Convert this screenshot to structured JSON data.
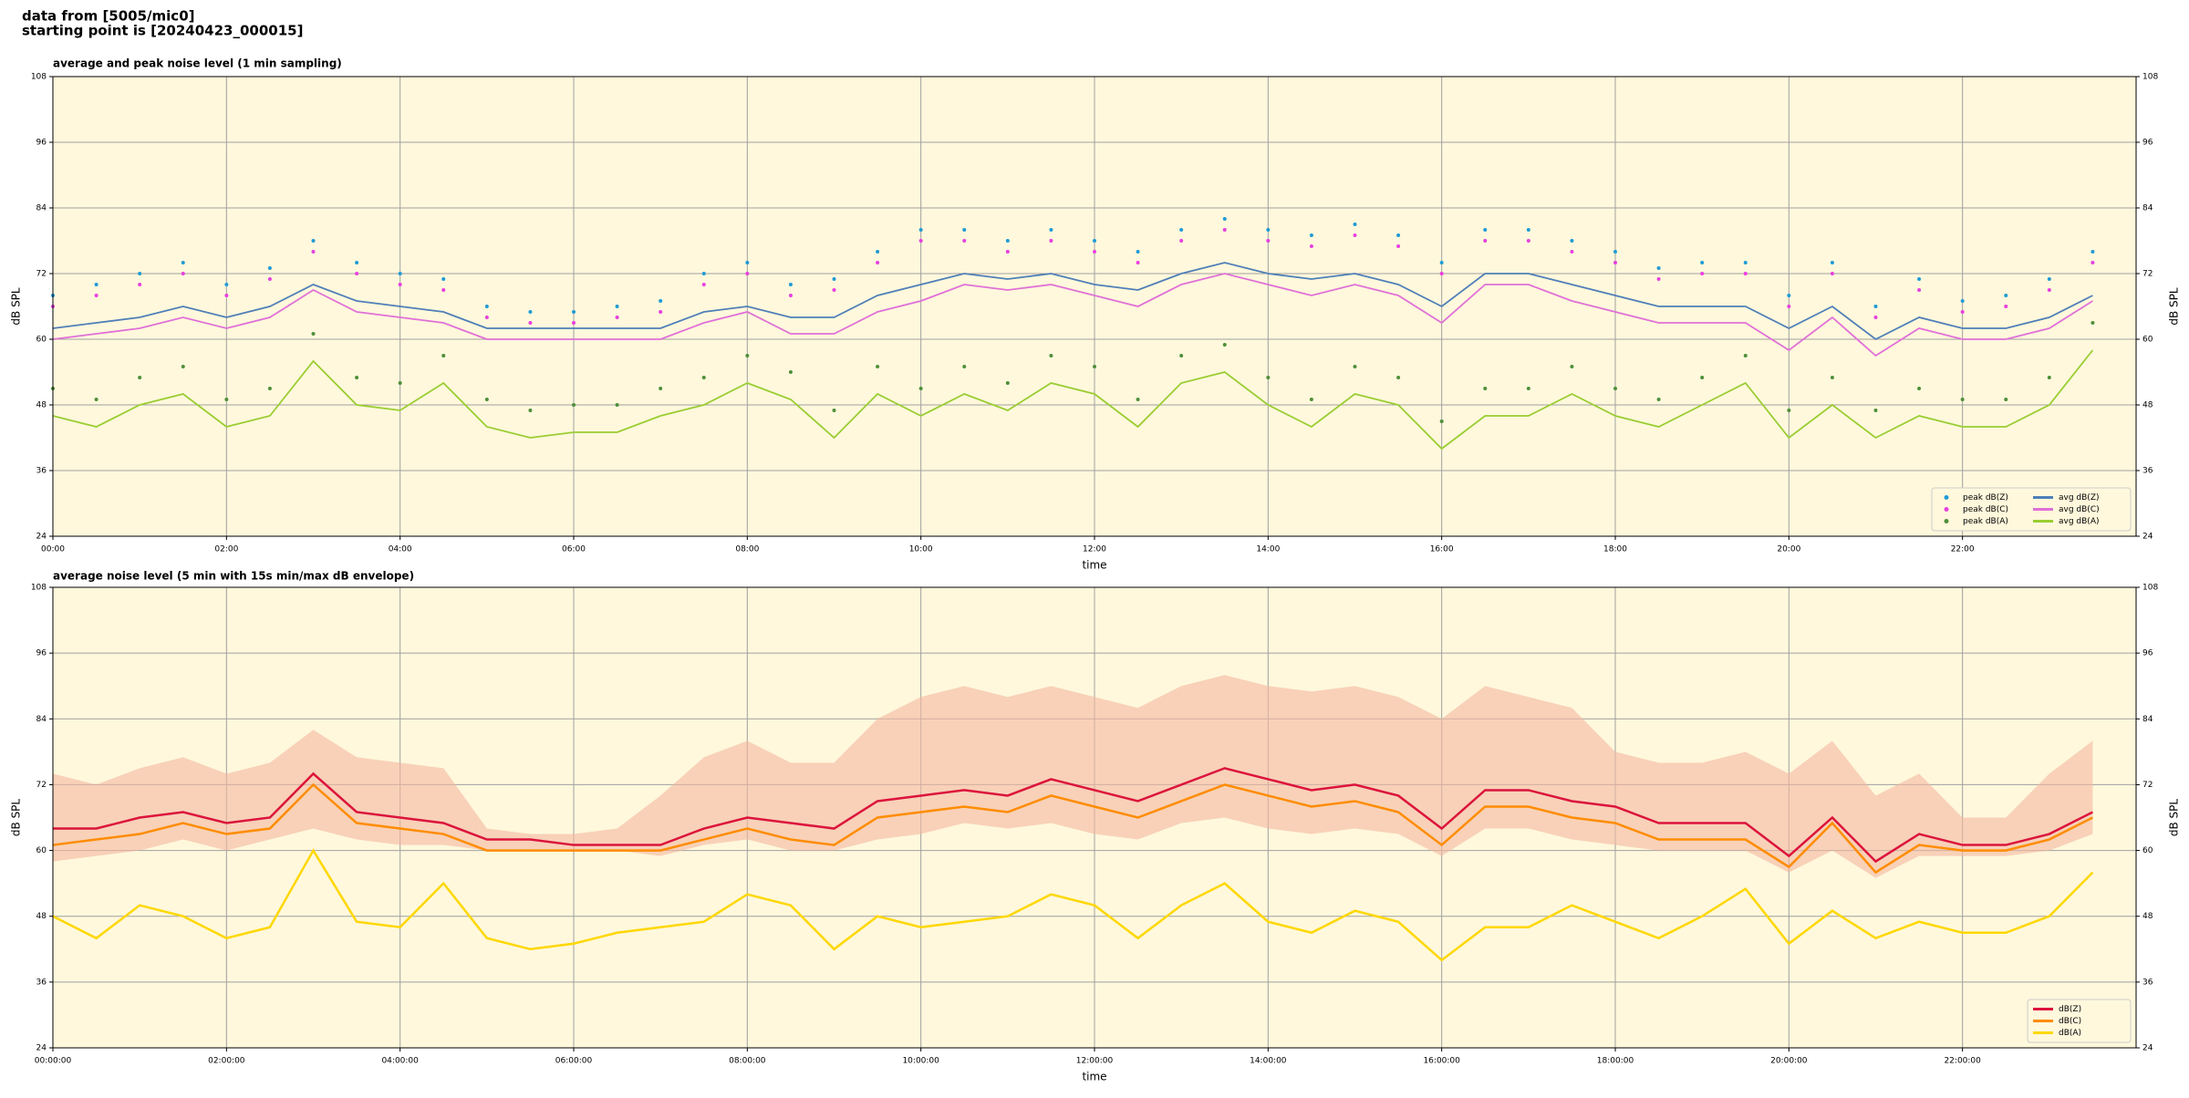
{
  "header": {
    "lines": [
      "data from [5005/mic0]",
      "starting point is [20240423_000015]"
    ]
  },
  "chart_data": [
    {
      "type": "line",
      "title": "average and peak noise level (1 min sampling)",
      "xlabel": "time",
      "ylabel": "dB SPL",
      "xlim": [
        "00:00",
        "24:00"
      ],
      "xticks": [
        "00:00",
        "02:00",
        "04:00",
        "06:00",
        "08:00",
        "10:00",
        "12:00",
        "14:00",
        "16:00",
        "18:00",
        "20:00",
        "22:00"
      ],
      "ylim": [
        24,
        108
      ],
      "yticks": [
        24,
        36,
        48,
        60,
        72,
        84,
        96,
        108
      ],
      "grid": true,
      "legend": "lower right",
      "legend_columns": 2,
      "x": [
        "00:00",
        "00:30",
        "01:00",
        "01:30",
        "02:00",
        "02:30",
        "03:00",
        "03:30",
        "04:00",
        "04:30",
        "05:00",
        "05:30",
        "06:00",
        "06:30",
        "07:00",
        "07:30",
        "08:00",
        "08:30",
        "09:00",
        "09:30",
        "10:00",
        "10:30",
        "11:00",
        "11:30",
        "12:00",
        "12:30",
        "13:00",
        "13:30",
        "14:00",
        "14:30",
        "15:00",
        "15:30",
        "16:00",
        "16:30",
        "17:00",
        "17:30",
        "18:00",
        "18:30",
        "19:00",
        "19:30",
        "20:00",
        "20:30",
        "21:00",
        "21:30",
        "22:00",
        "22:30",
        "23:00",
        "23:30"
      ],
      "series": [
        {
          "name": "peak dB(Z)",
          "style": "dots",
          "color": "#1f9bd6",
          "values": [
            68,
            70,
            72,
            74,
            70,
            73,
            78,
            74,
            72,
            71,
            66,
            65,
            65,
            66,
            67,
            72,
            74,
            70,
            71,
            76,
            80,
            80,
            78,
            80,
            78,
            76,
            80,
            82,
            80,
            79,
            81,
            79,
            74,
            80,
            80,
            78,
            76,
            73,
            74,
            74,
            68,
            74,
            66,
            71,
            67,
            68,
            71,
            76
          ]
        },
        {
          "name": "peak dB(C)",
          "style": "dots",
          "color": "#e83fe0",
          "values": [
            66,
            68,
            70,
            72,
            68,
            71,
            76,
            72,
            70,
            69,
            64,
            63,
            63,
            64,
            65,
            70,
            72,
            68,
            69,
            74,
            78,
            78,
            76,
            78,
            76,
            74,
            78,
            80,
            78,
            77,
            79,
            77,
            72,
            78,
            78,
            76,
            74,
            71,
            72,
            72,
            66,
            72,
            64,
            69,
            65,
            66,
            69,
            74
          ]
        },
        {
          "name": "peak dB(A)",
          "style": "dots",
          "color": "#4f8f3a",
          "values": [
            51,
            49,
            53,
            55,
            49,
            51,
            61,
            53,
            52,
            57,
            49,
            47,
            48,
            48,
            51,
            53,
            57,
            54,
            47,
            55,
            51,
            55,
            52,
            57,
            55,
            49,
            57,
            59,
            53,
            49,
            55,
            53,
            45,
            51,
            51,
            55,
            51,
            49,
            53,
            57,
            47,
            53,
            47,
            51,
            49,
            49,
            53,
            63
          ]
        },
        {
          "name": "avg dB(Z)",
          "style": "line",
          "color": "#4f7fb8",
          "values": [
            62,
            63,
            64,
            66,
            64,
            66,
            70,
            67,
            66,
            65,
            62,
            62,
            62,
            62,
            62,
            65,
            66,
            64,
            64,
            68,
            70,
            72,
            71,
            72,
            70,
            69,
            72,
            74,
            72,
            71,
            72,
            70,
            66,
            72,
            72,
            70,
            68,
            66,
            66,
            66,
            62,
            66,
            60,
            64,
            62,
            62,
            64,
            68
          ]
        },
        {
          "name": "avg dB(C)",
          "style": "line",
          "color": "#e070d8",
          "values": [
            60,
            61,
            62,
            64,
            62,
            64,
            69,
            65,
            64,
            63,
            60,
            60,
            60,
            60,
            60,
            63,
            65,
            61,
            61,
            65,
            67,
            70,
            69,
            70,
            68,
            66,
            70,
            72,
            70,
            68,
            70,
            68,
            63,
            70,
            70,
            67,
            65,
            63,
            63,
            63,
            58,
            64,
            57,
            62,
            60,
            60,
            62,
            67
          ]
        },
        {
          "name": "avg dB(A)",
          "style": "line",
          "color": "#9acd32",
          "values": [
            46,
            44,
            48,
            50,
            44,
            46,
            56,
            48,
            47,
            52,
            44,
            42,
            43,
            43,
            46,
            48,
            52,
            49,
            42,
            50,
            46,
            50,
            47,
            52,
            50,
            44,
            52,
            54,
            48,
            44,
            50,
            48,
            40,
            46,
            46,
            50,
            46,
            44,
            48,
            52,
            42,
            48,
            42,
            46,
            44,
            44,
            48,
            58
          ]
        }
      ]
    },
    {
      "type": "line",
      "title": "average noise level (5 min with 15s min/max dB envelope)",
      "xlabel": "time",
      "ylabel": "dB SPL",
      "xlim": [
        "00:00:00",
        "24:00:00"
      ],
      "xticks": [
        "00:00:00",
        "02:00:00",
        "04:00:00",
        "06:00:00",
        "08:00:00",
        "10:00:00",
        "12:00:00",
        "14:00:00",
        "16:00:00",
        "18:00:00",
        "20:00:00",
        "22:00:00"
      ],
      "ylim": [
        24,
        108
      ],
      "yticks": [
        24,
        36,
        48,
        60,
        72,
        84,
        96,
        108
      ],
      "grid": true,
      "legend": "lower right",
      "legend_columns": 1,
      "x": [
        "00:00:00",
        "00:30:00",
        "01:00:00",
        "01:30:00",
        "02:00:00",
        "02:30:00",
        "03:00:00",
        "03:30:00",
        "04:00:00",
        "04:30:00",
        "05:00:00",
        "05:30:00",
        "06:00:00",
        "06:30:00",
        "07:00:00",
        "07:30:00",
        "08:00:00",
        "08:30:00",
        "09:00:00",
        "09:30:00",
        "10:00:00",
        "10:30:00",
        "11:00:00",
        "11:30:00",
        "12:00:00",
        "12:30:00",
        "13:00:00",
        "13:30:00",
        "14:00:00",
        "14:30:00",
        "15:00:00",
        "15:30:00",
        "16:00:00",
        "16:30:00",
        "17:00:00",
        "17:30:00",
        "18:00:00",
        "18:30:00",
        "19:00:00",
        "19:30:00",
        "20:00:00",
        "20:30:00",
        "21:00:00",
        "21:30:00",
        "22:00:00",
        "22:30:00",
        "23:00:00",
        "23:30:00"
      ],
      "envelope": {
        "color": "#f4b8a0",
        "min": [
          58,
          59,
          60,
          62,
          60,
          62,
          64,
          62,
          61,
          61,
          60,
          60,
          60,
          60,
          59,
          61,
          62,
          60,
          60,
          62,
          63,
          65,
          64,
          65,
          63,
          62,
          65,
          66,
          64,
          63,
          64,
          63,
          59,
          64,
          64,
          62,
          61,
          60,
          60,
          60,
          56,
          60,
          55,
          59,
          59,
          59,
          60,
          63
        ],
        "max": [
          74,
          72,
          75,
          77,
          74,
          76,
          82,
          77,
          76,
          75,
          64,
          63,
          63,
          64,
          70,
          77,
          80,
          76,
          76,
          84,
          88,
          90,
          88,
          90,
          88,
          86,
          90,
          92,
          90,
          89,
          90,
          88,
          84,
          90,
          88,
          86,
          78,
          76,
          76,
          78,
          74,
          80,
          70,
          74,
          66,
          66,
          74,
          80
        ]
      },
      "series": [
        {
          "name": "dB(Z)",
          "style": "line",
          "color": "#dc143c",
          "values": [
            64,
            64,
            66,
            67,
            65,
            66,
            74,
            67,
            66,
            65,
            62,
            62,
            61,
            61,
            61,
            64,
            66,
            65,
            64,
            69,
            70,
            71,
            70,
            73,
            71,
            69,
            72,
            75,
            73,
            71,
            72,
            70,
            64,
            71,
            71,
            69,
            68,
            65,
            65,
            65,
            59,
            66,
            58,
            63,
            61,
            61,
            63,
            67
          ]
        },
        {
          "name": "dB(C)",
          "style": "line",
          "color": "#ff8c00",
          "values": [
            61,
            62,
            63,
            65,
            63,
            64,
            72,
            65,
            64,
            63,
            60,
            60,
            60,
            60,
            60,
            62,
            64,
            62,
            61,
            66,
            67,
            68,
            67,
            70,
            68,
            66,
            69,
            72,
            70,
            68,
            69,
            67,
            61,
            68,
            68,
            66,
            65,
            62,
            62,
            62,
            57,
            65,
            56,
            61,
            60,
            60,
            62,
            66
          ]
        },
        {
          "name": "dB(A)",
          "style": "line",
          "color": "#ffd700",
          "values": [
            48,
            44,
            50,
            48,
            44,
            46,
            60,
            47,
            46,
            54,
            44,
            42,
            43,
            45,
            46,
            47,
            52,
            50,
            42,
            48,
            46,
            47,
            48,
            52,
            50,
            44,
            50,
            54,
            47,
            45,
            49,
            47,
            40,
            46,
            46,
            50,
            47,
            44,
            48,
            53,
            43,
            49,
            44,
            47,
            45,
            45,
            48,
            56
          ]
        }
      ]
    }
  ]
}
